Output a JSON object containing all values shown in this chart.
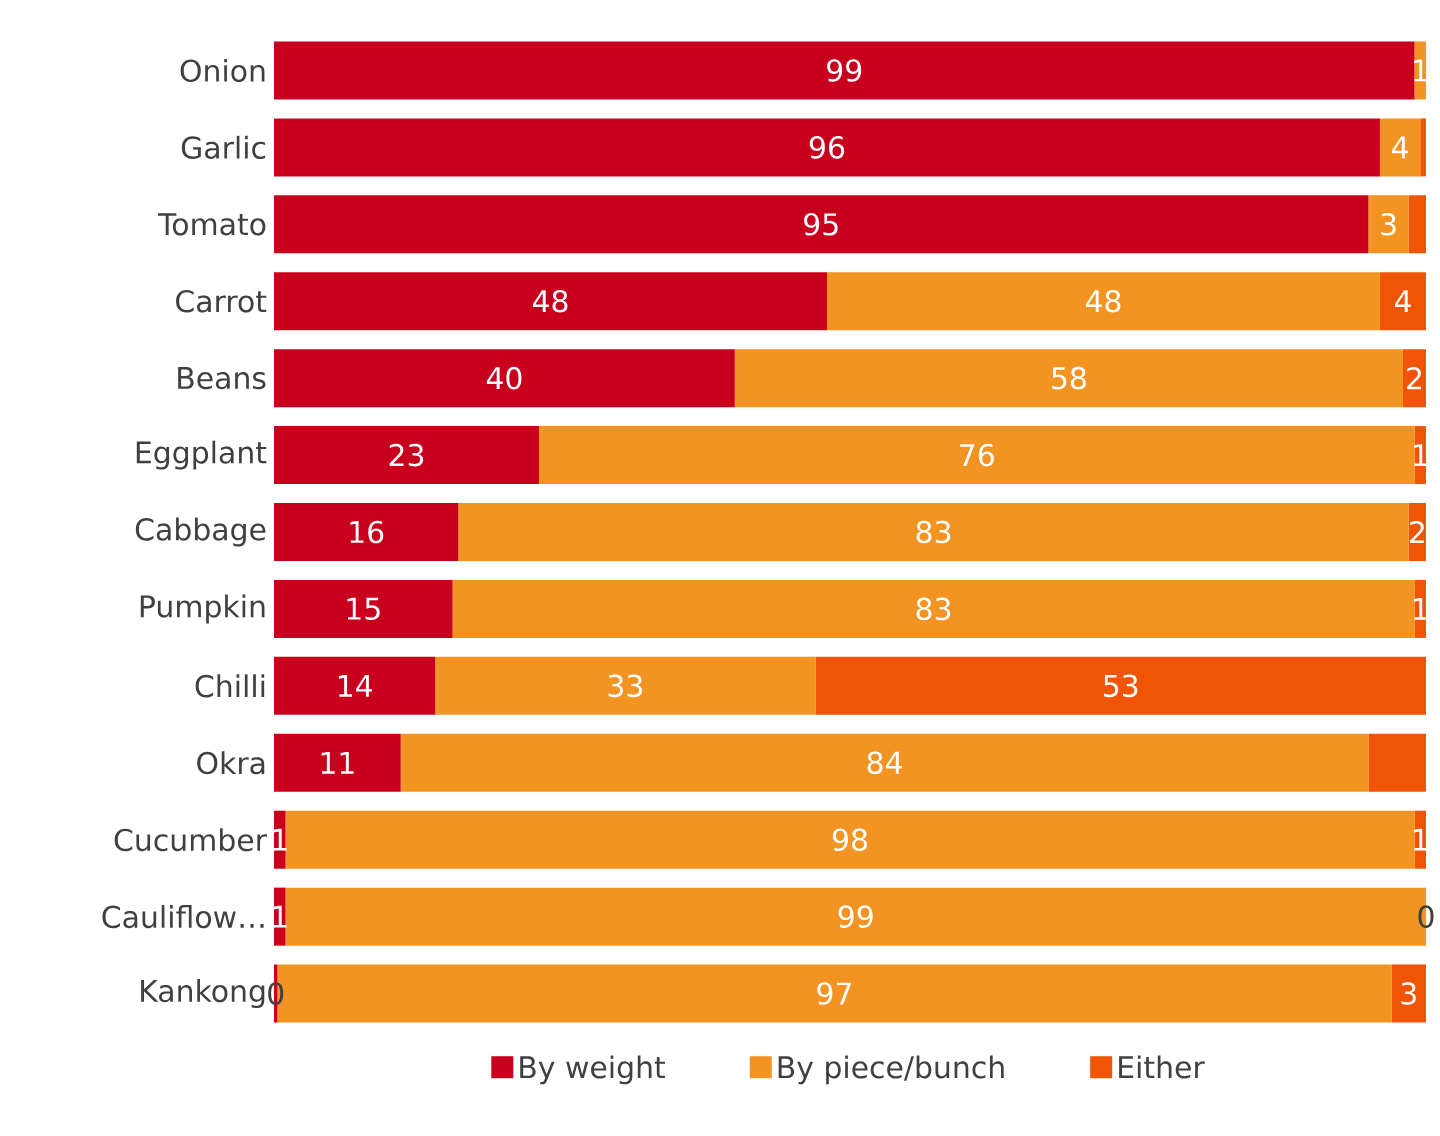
{
  "chart_data": {
    "type": "bar",
    "orientation": "horizontal",
    "stacked": true,
    "categories": [
      "Onion",
      "Garlic",
      "Tomato",
      "Carrot",
      "Beans",
      "Eggplant",
      "Cabbage",
      "Pumpkin",
      "Chilli",
      "Okra",
      "Cucumber",
      "Cauliflow…",
      "Kankong"
    ],
    "xlim": [
      0,
      100
    ],
    "tick_labels": "y",
    "legend": "bottom",
    "series": [
      {
        "name": "By weight",
        "color": "#c8001e",
        "values": [
          99,
          96,
          95,
          48,
          40,
          23,
          16,
          15.5,
          14,
          11,
          1,
          1,
          0.3
        ],
        "value_labels": [
          "99",
          "96",
          "95",
          "48",
          "40",
          "23",
          "16",
          "15",
          "14",
          "11",
          "1",
          "1",
          "0"
        ]
      },
      {
        "name": "By piece/bunch",
        "color": "#f39322",
        "values": [
          1,
          3.5,
          3.5,
          48,
          58,
          76,
          82.5,
          83.5,
          33,
          84,
          98,
          99,
          96.7
        ],
        "value_labels": [
          "1",
          "4",
          "3",
          "48",
          "58",
          "76",
          "83",
          "83",
          "33",
          "84",
          "98",
          "99",
          "97"
        ]
      },
      {
        "name": "Either",
        "color": "#ef5407",
        "values": [
          0,
          0.5,
          1.5,
          4,
          2,
          1,
          1.5,
          1,
          53,
          5,
          1,
          0,
          3
        ],
        "value_labels": [
          null,
          null,
          null,
          "4",
          "2",
          "1",
          "2",
          "1",
          "53",
          null,
          "1",
          "0",
          "3"
        ]
      }
    ]
  }
}
